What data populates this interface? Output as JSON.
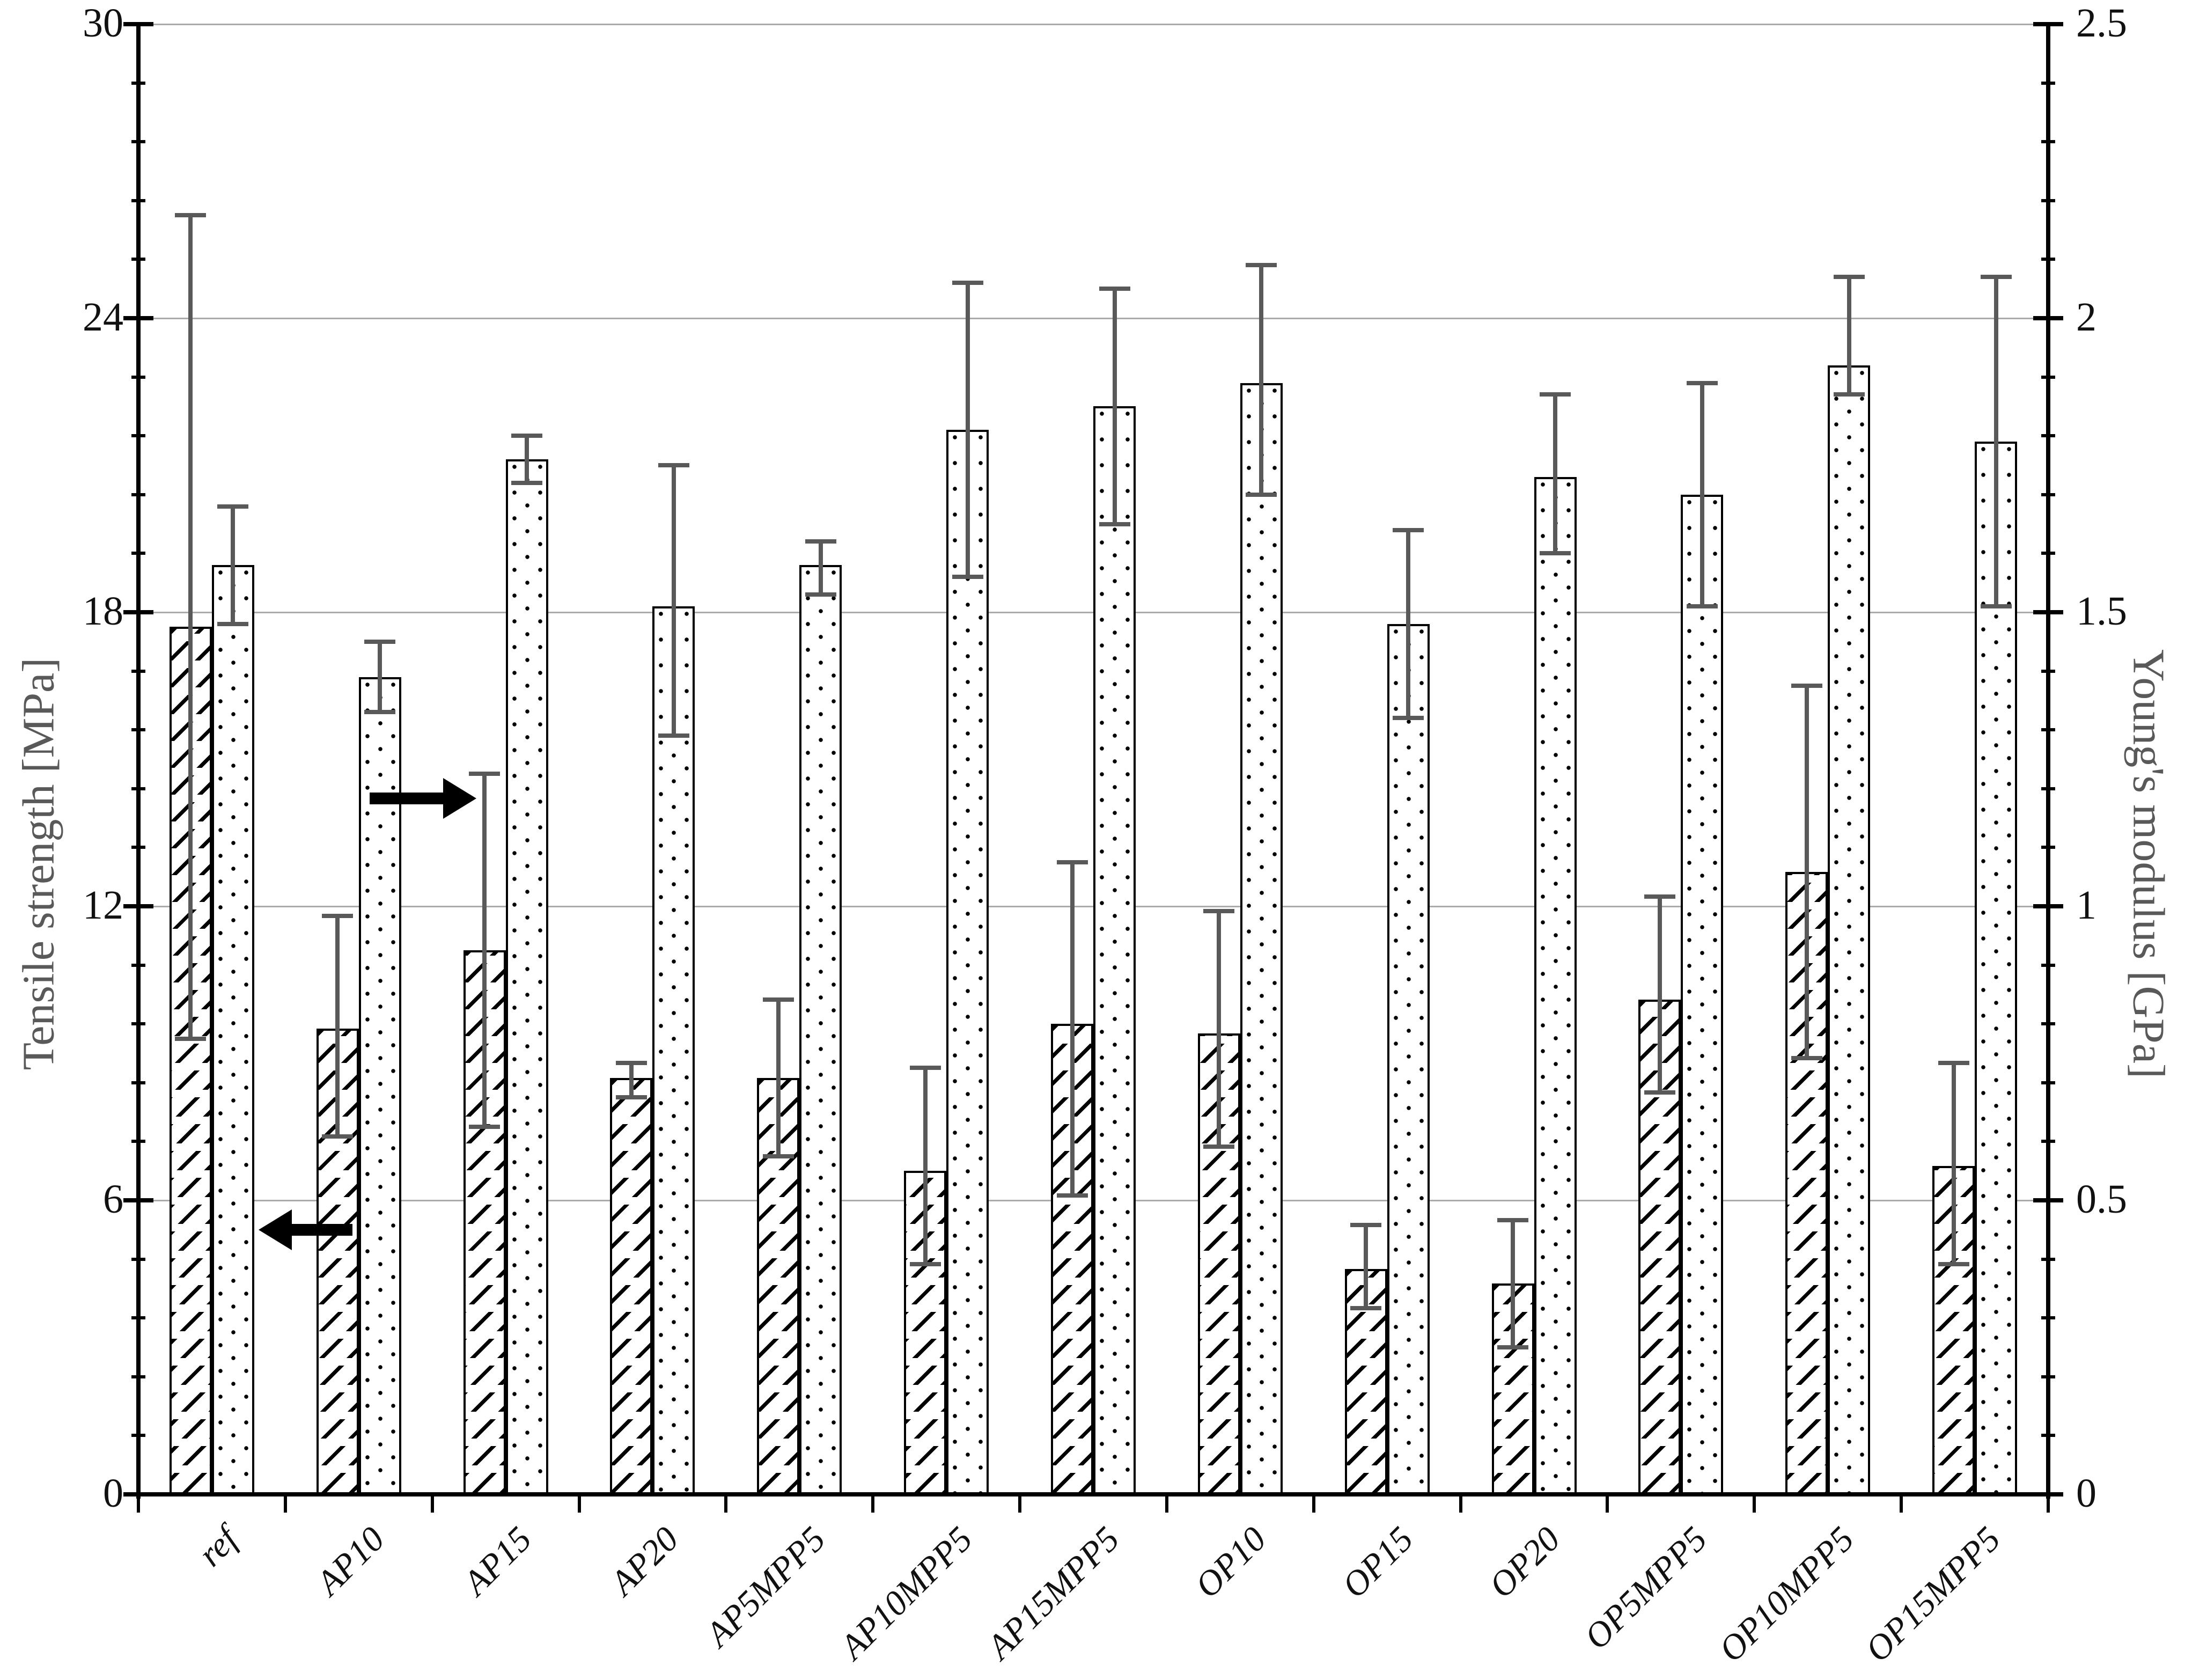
{
  "chart_data": {
    "type": "bar",
    "title": "",
    "grid": true,
    "legend_position": "none",
    "categories": [
      "ref",
      "AP10",
      "AP15",
      "AP20",
      "AP5MPP5",
      "AP10MPP5",
      "AP15MPP5",
      "OP10",
      "OP15",
      "OP20",
      "OP5MPP5",
      "OP10MPP5",
      "OP15MPP5"
    ],
    "series": [
      {
        "name": "Tensile strength",
        "axis": "left",
        "unit": "MPa",
        "pattern": "diagonal-hatch",
        "values": [
          17.7,
          9.5,
          11.1,
          8.5,
          8.5,
          6.6,
          9.6,
          9.4,
          4.6,
          4.3,
          10.1,
          12.7,
          6.7
        ],
        "error_low": [
          9.3,
          7.3,
          7.5,
          8.1,
          6.9,
          4.7,
          6.1,
          7.1,
          3.8,
          3.0,
          8.2,
          8.9,
          4.7
        ],
        "error_high": [
          26.1,
          11.8,
          14.7,
          8.8,
          10.1,
          8.7,
          12.9,
          11.9,
          5.5,
          5.6,
          12.2,
          16.5,
          8.8
        ]
      },
      {
        "name": "Young's modulus",
        "axis": "right",
        "unit": "GPa",
        "pattern": "dots",
        "values": [
          1.58,
          1.39,
          1.76,
          1.51,
          1.58,
          1.81,
          1.85,
          1.89,
          1.48,
          1.73,
          1.7,
          1.92,
          1.79
        ],
        "error_low": [
          1.48,
          1.33,
          1.72,
          1.29,
          1.53,
          1.56,
          1.65,
          1.7,
          1.32,
          1.6,
          1.51,
          1.87,
          1.51
        ],
        "error_high": [
          1.68,
          1.45,
          1.8,
          1.75,
          1.62,
          2.06,
          2.05,
          2.09,
          1.64,
          1.87,
          1.89,
          2.07,
          2.07
        ]
      }
    ],
    "left_axis": {
      "title": "Tensile strength [MPa]",
      "min": 0,
      "max": 30,
      "major_tick": 6,
      "minor_tick": 1.2,
      "tick_labels": [
        "0",
        "6",
        "12",
        "18",
        "24",
        "30"
      ]
    },
    "right_axis": {
      "title": "Young's modulus [GPa]",
      "min": 0,
      "max": 2.5,
      "major_tick": 0.5,
      "minor_tick": 0.1,
      "tick_labels": [
        "0",
        "0.5",
        "1",
        "1.5",
        "2",
        "2.5"
      ]
    },
    "annotations": [
      {
        "type": "arrow",
        "direction": "left",
        "meaning": "hatched bars read on left axis",
        "value_mpa": 5.4,
        "x_frac_start": 0.112,
        "x_frac_end": 0.063
      },
      {
        "type": "arrow",
        "direction": "right",
        "meaning": "dotted bars read on right axis",
        "value_mpa": 14.2,
        "x_frac_start": 0.121,
        "x_frac_end": 0.177
      }
    ],
    "colors": {
      "bar_fill": "#ffffff",
      "bar_border": "#000000",
      "error_bar": "#595959",
      "gridline": "#ababab",
      "axis": "#000000",
      "axis_title": "#595959",
      "tick_label": "#111111",
      "arrow": "#000000"
    }
  }
}
